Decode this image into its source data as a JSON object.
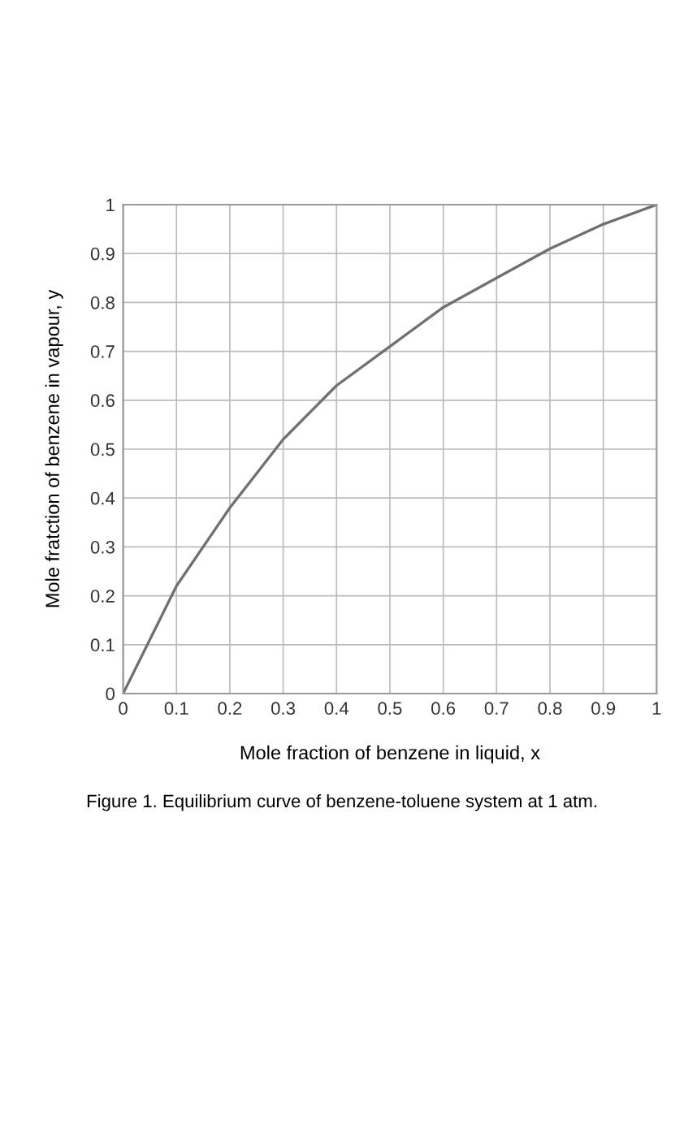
{
  "chart_data": {
    "type": "line",
    "xlabel": "Mole fraction of benzene in liquid, x",
    "ylabel": "Mole fratction of benzene in vapour, y",
    "annotations": [
      "Figure 1. Equilibrium curve of benzene-toluene system at 1 atm."
    ],
    "x": [
      0,
      0.05,
      0.1,
      0.15,
      0.2,
      0.3,
      0.4,
      0.5,
      0.6,
      0.7,
      0.8,
      0.9,
      1
    ],
    "series": [
      {
        "color": "#707070",
        "values": [
          0,
          0.11,
          0.22,
          0.3,
          0.38,
          0.52,
          0.63,
          0.71,
          0.79,
          0.85,
          0.91,
          0.96,
          1
        ]
      }
    ],
    "xlim": [
      0,
      1
    ],
    "ylim": [
      0,
      1
    ],
    "xticks": [
      0,
      0.1,
      0.2,
      0.3,
      0.4,
      0.5,
      0.6,
      0.7,
      0.8,
      0.9,
      1
    ],
    "yticks": [
      0,
      0.1,
      0.2,
      0.3,
      0.4,
      0.5,
      0.6,
      0.7,
      0.8,
      0.9,
      1
    ],
    "grid": true,
    "marker": "none",
    "line_style": "solid"
  }
}
